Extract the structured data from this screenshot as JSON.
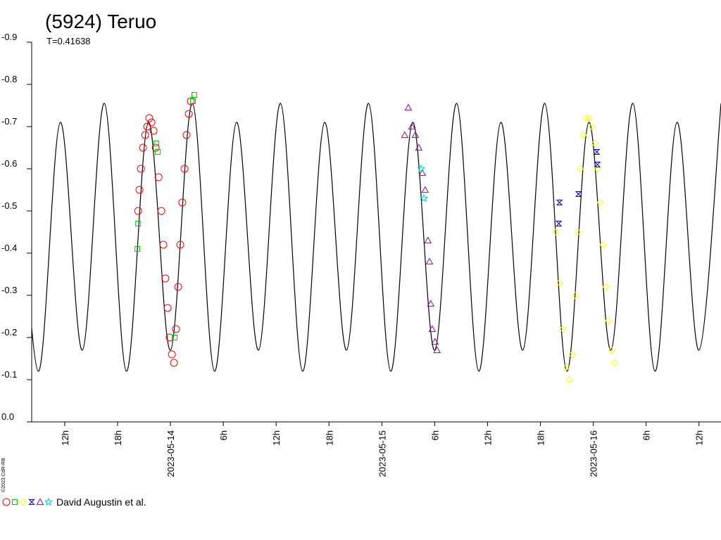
{
  "chart_data": {
    "type": "scatter",
    "title": "(5924) Teruo",
    "subtitle": "T=0.41638",
    "credit": "©2023 CdR-RB",
    "legend": "David Augustin et al.",
    "ylim": [
      0,
      -0.9
    ],
    "yticks": [
      -0.9,
      -0.8,
      -0.7,
      -0.6,
      -0.5,
      -0.4,
      -0.3,
      -0.2,
      -0.1,
      {
        "value": 0,
        "label": "0.0"
      }
    ],
    "xlim": [
      "2023-05-13T08:15",
      "2023-05-16T14:30"
    ],
    "xticks": [
      {
        "value": "2023-05-13T12:00",
        "label": "12h"
      },
      {
        "value": "2023-05-13T18:00",
        "label": "18h"
      },
      {
        "value": "2023-05-14T00:00",
        "label": "2023-05-14"
      },
      {
        "value": "2023-05-14T06:00",
        "label": "6h"
      },
      {
        "value": "2023-05-14T12:00",
        "label": "12h"
      },
      {
        "value": "2023-05-14T18:00",
        "label": "18h"
      },
      {
        "value": "2023-05-15T00:00",
        "label": "2023-05-15"
      },
      {
        "value": "2023-05-15T06:00",
        "label": "6h"
      },
      {
        "value": "2023-05-15T12:00",
        "label": "12h"
      },
      {
        "value": "2023-05-15T18:00",
        "label": "18h"
      },
      {
        "value": "2023-05-16T00:00",
        "label": "2023-05-16"
      },
      {
        "value": "2023-05-16T06:00",
        "label": "6h"
      },
      {
        "value": "2023-05-16T12:00",
        "label": "12h"
      }
    ],
    "model": {
      "type": "line",
      "color": "#000000",
      "x": [
        "2023-05-13T06:30",
        "2023-05-13T09:00",
        "2023-05-13T11:30",
        "2023-05-13T14:00",
        "2023-05-13T16:30",
        "2023-05-13T19:00",
        "2023-05-13T21:30",
        "2023-05-14T00:00",
        "2023-05-14T02:30",
        "2023-05-14T05:00",
        "2023-05-14T07:30",
        "2023-05-14T10:00",
        "2023-05-14T12:30",
        "2023-05-14T15:00",
        "2023-05-14T17:30",
        "2023-05-14T20:00",
        "2023-05-14T22:30",
        "2023-05-15T01:00",
        "2023-05-15T03:30",
        "2023-05-15T06:00",
        "2023-05-15T08:30",
        "2023-05-15T11:00",
        "2023-05-15T13:30",
        "2023-05-15T16:00",
        "2023-05-15T18:30",
        "2023-05-15T21:00",
        "2023-05-15T23:30",
        "2023-05-16T02:00",
        "2023-05-16T04:30",
        "2023-05-16T07:00",
        "2023-05-16T09:30",
        "2023-05-16T12:00",
        "2023-05-16T14:30"
      ],
      "values": [
        -0.755,
        -0.12,
        -0.71,
        -0.17,
        -0.755,
        -0.12,
        -0.71,
        -0.17,
        -0.755,
        -0.12,
        -0.71,
        -0.17,
        -0.755,
        -0.12,
        -0.71,
        -0.17,
        -0.755,
        -0.12,
        -0.71,
        -0.17,
        -0.755,
        -0.12,
        -0.71,
        -0.17,
        -0.755,
        -0.12,
        -0.71,
        -0.17,
        -0.755,
        -0.12,
        -0.71,
        -0.17,
        -0.755
      ]
    },
    "series": [
      {
        "color": "#ff0000",
        "marker": "circle",
        "x": [
          "2023-05-13T20:20",
          "2023-05-13T20:29",
          "2023-05-13T20:39",
          "2023-05-13T20:53",
          "2023-05-13T21:08",
          "2023-05-13T21:22",
          "2023-05-13T21:36",
          "2023-05-13T21:51",
          "2023-05-13T22:05",
          "2023-05-13T22:20",
          "2023-05-13T22:39",
          "2023-05-13T22:58",
          "2023-05-13T23:12",
          "2023-05-13T23:26",
          "2023-05-13T23:41",
          "2023-05-13T23:55",
          "2023-05-14T00:10",
          "2023-05-14T00:24",
          "2023-05-14T00:38",
          "2023-05-14T00:53",
          "2023-05-14T01:07",
          "2023-05-14T01:21",
          "2023-05-14T01:36",
          "2023-05-14T01:50",
          "2023-05-14T02:05",
          "2023-05-14T02:19"
        ],
        "values": [
          -0.5,
          -0.55,
          -0.6,
          -0.65,
          -0.68,
          -0.7,
          -0.72,
          -0.71,
          -0.69,
          -0.65,
          -0.58,
          -0.5,
          -0.42,
          -0.34,
          -0.27,
          -0.2,
          -0.16,
          -0.14,
          -0.22,
          -0.32,
          -0.42,
          -0.52,
          -0.6,
          -0.68,
          -0.73,
          -0.76
        ]
      },
      {
        "color": "#00cc00",
        "marker": "square",
        "x": [
          "2023-05-13T20:15",
          "2023-05-13T20:20",
          "2023-05-13T22:24",
          "2023-05-13T22:34",
          "2023-05-14T00:29",
          "2023-05-14T02:33",
          "2023-05-14T02:43"
        ],
        "values": [
          -0.41,
          -0.47,
          -0.66,
          -0.64,
          -0.2,
          -0.76,
          -0.775
        ]
      },
      {
        "color": "#ffff00",
        "marker": "diamond",
        "x": [
          "2023-05-15T19:46",
          "2023-05-15T20:10",
          "2023-05-15T20:34",
          "2023-05-15T20:58",
          "2023-05-15T21:17",
          "2023-05-15T21:36",
          "2023-05-15T21:55",
          "2023-05-15T22:14",
          "2023-05-15T22:34",
          "2023-05-15T22:53",
          "2023-05-15T23:12",
          "2023-05-15T23:31",
          "2023-05-15T23:50",
          "2023-05-16T00:10",
          "2023-05-16T00:29",
          "2023-05-16T00:48",
          "2023-05-16T01:07",
          "2023-05-16T01:26",
          "2023-05-16T01:45",
          "2023-05-16T02:05",
          "2023-05-16T02:24"
        ],
        "values": [
          -0.45,
          -0.33,
          -0.22,
          -0.13,
          -0.1,
          -0.16,
          -0.3,
          -0.45,
          -0.6,
          -0.68,
          -0.72,
          -0.72,
          -0.7,
          -0.66,
          -0.6,
          -0.52,
          -0.42,
          -0.32,
          -0.24,
          -0.17,
          -0.14
        ]
      },
      {
        "color": "#0000cc",
        "marker": "bowtie",
        "x": [
          "2023-05-15T20:05",
          "2023-05-15T20:10",
          "2023-05-15T22:19",
          "2023-05-16T00:24",
          "2023-05-16T00:29"
        ],
        "values": [
          -0.47,
          -0.52,
          -0.54,
          -0.64,
          -0.61
        ]
      },
      {
        "color": "#990099",
        "marker": "triangle",
        "x": [
          "2023-05-15T02:36",
          "2023-05-15T03:00",
          "2023-05-15T03:24",
          "2023-05-15T03:48",
          "2023-05-15T04:12",
          "2023-05-15T04:36",
          "2023-05-15T04:55",
          "2023-05-15T05:14",
          "2023-05-15T05:24",
          "2023-05-15T05:33",
          "2023-05-15T05:43",
          "2023-05-15T06:02",
          "2023-05-15T06:16"
        ],
        "values": [
          -0.68,
          -0.745,
          -0.7,
          -0.68,
          -0.65,
          -0.59,
          -0.55,
          -0.43,
          -0.38,
          -0.28,
          -0.22,
          -0.19,
          -0.17
        ]
      },
      {
        "color": "#00cccc",
        "marker": "star",
        "x": [
          "2023-05-15T04:27",
          "2023-05-15T04:46"
        ],
        "values": [
          -0.6,
          -0.53
        ]
      }
    ]
  }
}
